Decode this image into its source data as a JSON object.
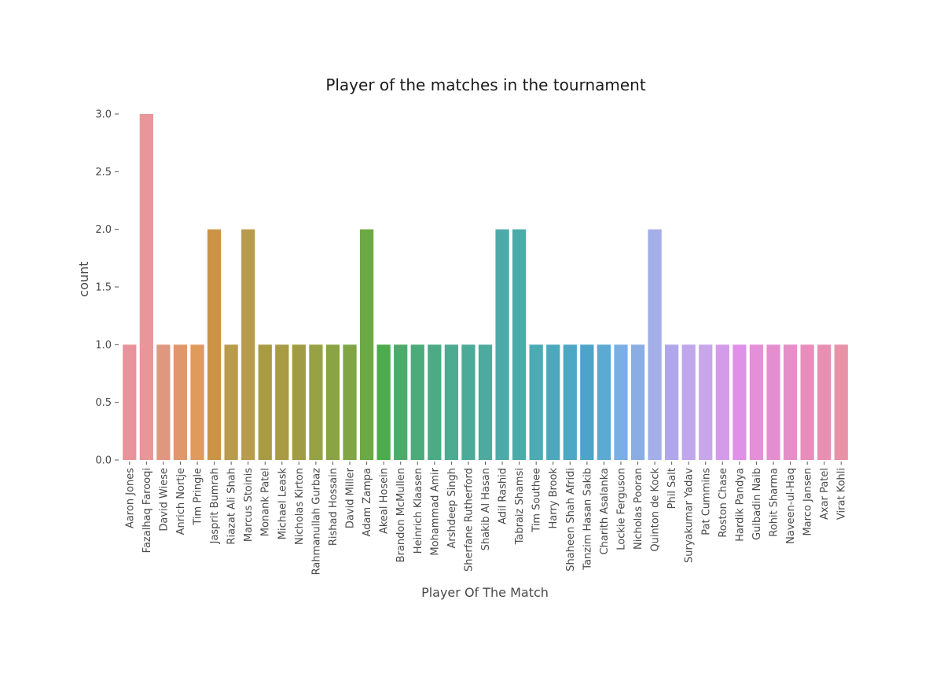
{
  "chart_data": {
    "type": "bar",
    "title": "Player of the matches in the tournament",
    "xlabel": "Player Of The Match",
    "ylabel": "count",
    "ylim": [
      0,
      3
    ],
    "yticks": [
      "0.0",
      "0.5",
      "1.0",
      "1.5",
      "2.0",
      "2.5",
      "3.0"
    ],
    "grid": false,
    "categories": [
      "Aaron Jones",
      "Fazalhaq Farooqi",
      "David Wiese",
      "Anrich Nortje",
      "Tim Pringle",
      "Jasprit Bumrah",
      "Riazat Ali Shah",
      "Marcus Stoinis",
      "Monank Patel",
      "Michael Leask",
      "Nicholas Kirton",
      "Rahmanullah Gurbaz",
      "Rishad Hossain",
      "David Miller",
      "Adam Zampa",
      "Akeal Hosein",
      "Brandon McMullen",
      "Heinrich Klaasen",
      "Mohammad Amir",
      "Arshdeep Singh",
      "Sherfane Rutherford",
      "Shakib Al Hasan",
      "Adil Rashid",
      "Tabraiz Shamsi",
      "Tim Southee",
      "Harry Brook",
      "Shaheen Shah Afridi",
      "Tanzim Hasan Sakib",
      "Charith Asalanka",
      "Lockie Ferguson",
      "Nicholas Pooran",
      "Quinton de Kock",
      "Phil Salt",
      "Suryakumar Yadav",
      "Pat Cummins",
      "Roston Chase",
      "Hardik Pandya",
      "Gulbadin Naib",
      "Rohit Sharma",
      "Naveen-ul-Haq",
      "Marco Jansen",
      "Axar Patel",
      "Virat Kohli"
    ],
    "values": [
      1,
      3,
      1,
      1,
      1,
      2,
      1,
      2,
      1,
      1,
      1,
      1,
      1,
      1,
      2,
      1,
      1,
      1,
      1,
      1,
      1,
      1,
      2,
      2,
      1,
      1,
      1,
      1,
      1,
      1,
      1,
      2,
      1,
      1,
      1,
      1,
      1,
      1,
      1,
      1,
      1,
      1,
      1
    ],
    "colors": [
      "#e8939b",
      "#e8969a",
      "#e09780",
      "#e0976c",
      "#e09a5c",
      "#ca9446",
      "#b89b4c",
      "#b89b4c",
      "#a89b44",
      "#a89b44",
      "#a09b44",
      "#97a244",
      "#8aa344",
      "#7fa544",
      "#6aa944",
      "#4cab4c",
      "#4cab6a",
      "#4cab7a",
      "#4cab84",
      "#4cab90",
      "#4cab98",
      "#4cab9e",
      "#4caba8",
      "#4caba8",
      "#4caab4",
      "#4ca8bc",
      "#4ca8c4",
      "#4ca4c8",
      "#5caad4",
      "#7aaee4",
      "#8aaee4",
      "#a4aee8",
      "#b0a6ea",
      "#c0a6ea",
      "#c8a6ea",
      "#d49ce8",
      "#e090e8",
      "#e490d8",
      "#e48ed0",
      "#e68ec8",
      "#e88ebc",
      "#e890b2",
      "#e892a8"
    ]
  }
}
